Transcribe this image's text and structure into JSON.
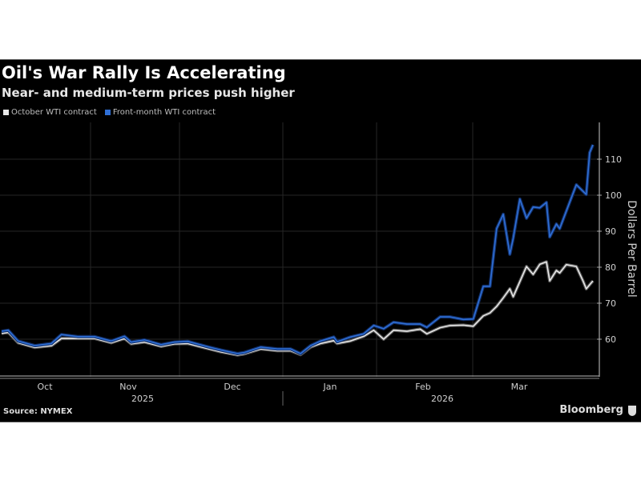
{
  "chart_data": {
    "type": "line",
    "title": "Oil's War Rally Is Accelerating",
    "subtitle": "Near- and medium-term prices push higher",
    "ylabel": "Dollars Per Barrel",
    "xlabel": "",
    "ylim": [
      50,
      120
    ],
    "yticks": [
      60,
      70,
      80,
      90,
      100,
      110
    ],
    "xticks": [
      "Oct",
      "Nov",
      "Dec",
      "Jan",
      "Feb",
      "Mar"
    ],
    "years": [
      "2025",
      "2026"
    ],
    "grid": true,
    "legend_position": "top-left",
    "source": "Source: NYMEX",
    "brand": "Bloomberg",
    "series": [
      {
        "name": "October WTI contract",
        "color": "#e8e8e8",
        "points": [
          [
            "2025-10-01",
            61.6
          ],
          [
            "2025-10-03",
            61.9
          ],
          [
            "2025-10-06",
            59.0
          ],
          [
            "2025-10-11",
            57.7
          ],
          [
            "2025-10-16",
            58.2
          ],
          [
            "2025-10-19",
            60.2
          ],
          [
            "2025-10-24",
            60.2
          ],
          [
            "2025-10-29",
            60.2
          ],
          [
            "2025-11-03",
            59.0
          ],
          [
            "2025-11-07",
            60.2
          ],
          [
            "2025-11-09",
            58.7
          ],
          [
            "2025-11-13",
            59.2
          ],
          [
            "2025-11-18",
            58.0
          ],
          [
            "2025-11-22",
            58.7
          ],
          [
            "2025-11-26",
            58.8
          ],
          [
            "2025-12-02",
            57.4
          ],
          [
            "2025-12-06",
            56.5
          ],
          [
            "2025-12-11",
            55.6
          ],
          [
            "2025-12-13",
            55.9
          ],
          [
            "2025-12-18",
            57.3
          ],
          [
            "2025-12-23",
            56.8
          ],
          [
            "2025-12-27",
            56.8
          ],
          [
            "2025-12-30",
            55.7
          ],
          [
            "2026-01-02",
            57.8
          ],
          [
            "2026-01-05",
            58.8
          ],
          [
            "2026-01-09",
            59.6
          ],
          [
            "2026-01-10",
            58.8
          ],
          [
            "2026-01-14",
            59.5
          ],
          [
            "2026-01-18",
            60.8
          ],
          [
            "2026-01-21",
            62.5
          ],
          [
            "2026-01-24",
            60.0
          ],
          [
            "2026-01-27",
            62.5
          ],
          [
            "2026-01-31",
            62.2
          ],
          [
            "2026-02-04",
            62.8
          ],
          [
            "2026-02-06",
            61.5
          ],
          [
            "2026-02-10",
            63.2
          ],
          [
            "2026-02-13",
            63.8
          ],
          [
            "2026-02-17",
            63.9
          ],
          [
            "2026-02-20",
            63.6
          ],
          [
            "2026-02-23",
            66.5
          ],
          [
            "2026-02-25",
            67.3
          ],
          [
            "2026-02-27",
            69.1
          ],
          [
            "2026-03-01",
            71.5
          ],
          [
            "2026-03-03",
            74.0
          ],
          [
            "2026-03-04",
            71.8
          ],
          [
            "2026-03-06",
            76.0
          ],
          [
            "2026-03-08",
            80.2
          ],
          [
            "2026-03-10",
            78.0
          ],
          [
            "2026-03-12",
            80.8
          ],
          [
            "2026-03-14",
            81.5
          ],
          [
            "2026-03-15",
            76.2
          ],
          [
            "2026-03-17",
            79.1
          ],
          [
            "2026-03-18",
            78.4
          ],
          [
            "2026-03-20",
            80.7
          ],
          [
            "2026-03-23",
            80.2
          ],
          [
            "2026-03-25",
            76.2
          ],
          [
            "2026-03-26",
            74.0
          ],
          [
            "2026-03-28",
            76.2
          ]
        ]
      },
      {
        "name": "Front-month WTI contract",
        "color": "#2f6fd6",
        "points": [
          [
            "2025-10-01",
            62.2
          ],
          [
            "2025-10-03",
            62.5
          ],
          [
            "2025-10-06",
            59.5
          ],
          [
            "2025-10-11",
            58.2
          ],
          [
            "2025-10-16",
            58.8
          ],
          [
            "2025-10-19",
            61.3
          ],
          [
            "2025-10-24",
            60.7
          ],
          [
            "2025-10-29",
            60.7
          ],
          [
            "2025-11-03",
            59.5
          ],
          [
            "2025-11-07",
            60.8
          ],
          [
            "2025-11-09",
            59.2
          ],
          [
            "2025-11-13",
            59.8
          ],
          [
            "2025-11-18",
            58.5
          ],
          [
            "2025-11-22",
            59.2
          ],
          [
            "2025-11-26",
            59.4
          ],
          [
            "2025-12-02",
            57.9
          ],
          [
            "2025-12-06",
            57.0
          ],
          [
            "2025-12-11",
            56.0
          ],
          [
            "2025-12-13",
            56.3
          ],
          [
            "2025-12-18",
            57.8
          ],
          [
            "2025-12-23",
            57.3
          ],
          [
            "2025-12-27",
            57.3
          ],
          [
            "2025-12-30",
            56.0
          ],
          [
            "2026-01-02",
            58.2
          ],
          [
            "2026-01-05",
            59.5
          ],
          [
            "2026-01-09",
            60.6
          ],
          [
            "2026-01-10",
            59.3
          ],
          [
            "2026-01-14",
            60.6
          ],
          [
            "2026-01-18",
            61.5
          ],
          [
            "2026-01-21",
            63.8
          ],
          [
            "2026-01-24",
            62.9
          ],
          [
            "2026-01-27",
            64.7
          ],
          [
            "2026-01-31",
            64.2
          ],
          [
            "2026-02-04",
            64.2
          ],
          [
            "2026-02-06",
            63.3
          ],
          [
            "2026-02-10",
            66.2
          ],
          [
            "2026-02-13",
            66.2
          ],
          [
            "2026-02-17",
            65.5
          ],
          [
            "2026-02-20",
            65.6
          ],
          [
            "2026-02-23",
            74.7
          ],
          [
            "2026-02-25",
            74.7
          ],
          [
            "2026-02-27",
            90.7
          ],
          [
            "2026-03-01",
            94.7
          ],
          [
            "2026-03-03",
            83.6
          ],
          [
            "2026-03-04",
            88.0
          ],
          [
            "2026-03-06",
            98.9
          ],
          [
            "2026-03-08",
            93.6
          ],
          [
            "2026-03-10",
            96.7
          ],
          [
            "2026-03-12",
            96.5
          ],
          [
            "2026-03-14",
            98.0
          ],
          [
            "2026-03-15",
            88.4
          ],
          [
            "2026-03-17",
            92.0
          ],
          [
            "2026-03-18",
            90.7
          ],
          [
            "2026-03-23",
            102.9
          ],
          [
            "2026-03-26",
            100.2
          ],
          [
            "2026-03-27",
            111.8
          ],
          [
            "2026-03-28",
            114.0
          ]
        ]
      }
    ]
  }
}
